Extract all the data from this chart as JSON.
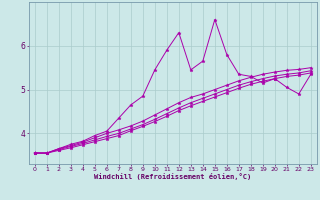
{
  "xlabel": "Windchill (Refroidissement éolien,°C)",
  "background_color": "#cce8e8",
  "line_color": "#aa00aa",
  "grid_color": "#aacccc",
  "xlim": [
    -0.5,
    23.5
  ],
  "ylim": [
    3.3,
    7.0
  ],
  "yticks": [
    4,
    5,
    6
  ],
  "xticks": [
    0,
    1,
    2,
    3,
    4,
    5,
    6,
    7,
    8,
    9,
    10,
    11,
    12,
    13,
    14,
    15,
    16,
    17,
    18,
    19,
    20,
    21,
    22,
    23
  ],
  "series": [
    [
      3.55,
      3.55,
      3.65,
      3.75,
      3.82,
      3.95,
      4.05,
      4.35,
      4.65,
      4.85,
      5.45,
      5.9,
      6.3,
      5.45,
      5.65,
      6.6,
      5.8,
      5.35,
      5.3,
      5.15,
      5.25,
      5.05,
      4.9,
      5.35
    ],
    [
      3.55,
      3.55,
      3.65,
      3.72,
      3.8,
      3.9,
      4.0,
      4.08,
      4.17,
      4.28,
      4.42,
      4.56,
      4.7,
      4.82,
      4.9,
      5.0,
      5.1,
      5.2,
      5.28,
      5.35,
      5.4,
      5.44,
      5.46,
      5.5
    ],
    [
      3.55,
      3.55,
      3.63,
      3.7,
      3.77,
      3.85,
      3.93,
      4.0,
      4.1,
      4.2,
      4.32,
      4.45,
      4.58,
      4.7,
      4.8,
      4.9,
      5.0,
      5.1,
      5.18,
      5.25,
      5.31,
      5.35,
      5.38,
      5.43
    ],
    [
      3.55,
      3.55,
      3.61,
      3.67,
      3.74,
      3.81,
      3.88,
      3.95,
      4.06,
      4.16,
      4.27,
      4.39,
      4.52,
      4.63,
      4.73,
      4.83,
      4.93,
      5.03,
      5.12,
      5.19,
      5.25,
      5.3,
      5.33,
      5.38
    ]
  ]
}
